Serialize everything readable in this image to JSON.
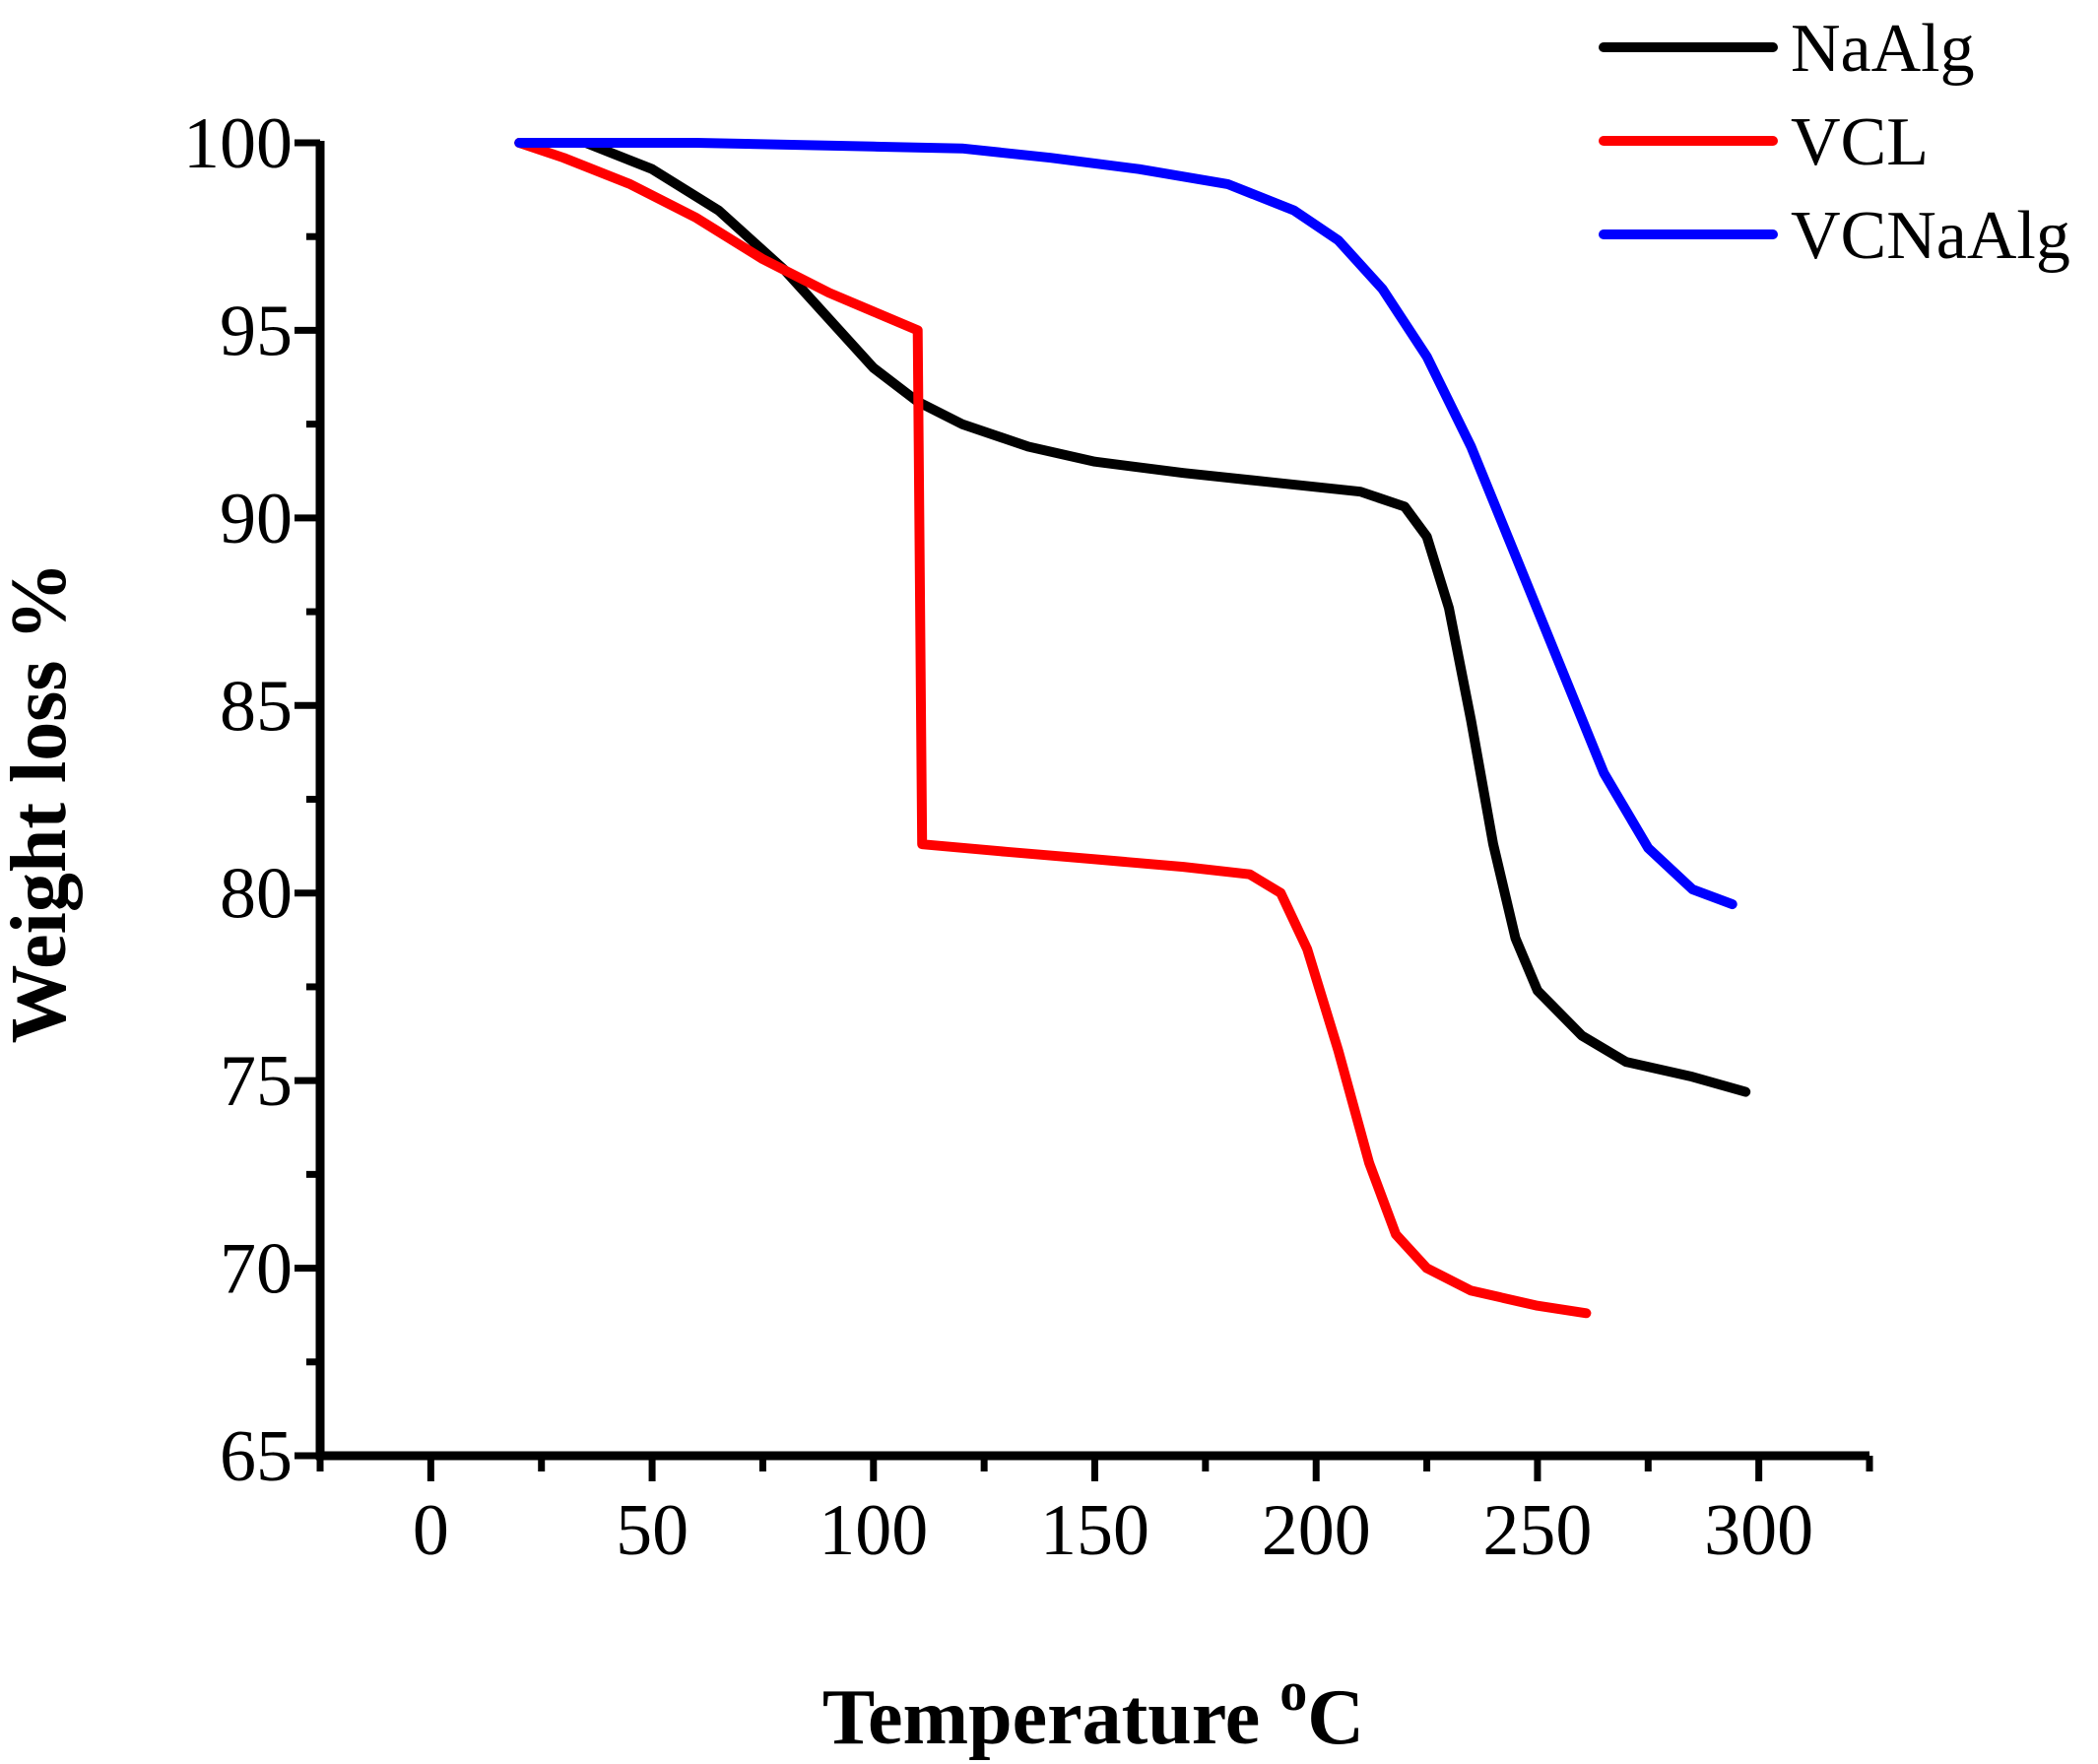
{
  "chart_data": {
    "type": "line",
    "title": "",
    "xlabel": "Temperature",
    "xlabel_unit_sup": "o",
    "xlabel_unit": "C",
    "ylabel": "Weight loss %",
    "xlim": [
      -25,
      325
    ],
    "ylim": [
      65,
      100
    ],
    "xticks": [
      0,
      50,
      100,
      150,
      200,
      250,
      300
    ],
    "yticks": [
      65,
      70,
      75,
      80,
      85,
      90,
      95,
      100
    ],
    "xtick_labels": [
      "0",
      "50",
      "100",
      "150",
      "200",
      "250",
      "300"
    ],
    "ytick_labels": [
      "65",
      "70",
      "75",
      "80",
      "85",
      "90",
      "95",
      "100"
    ],
    "grid": false,
    "legend_position": "top-right",
    "series": [
      {
        "name": "NaAlg",
        "color": "#000000",
        "points": [
          [
            20,
            100
          ],
          [
            35,
            100
          ],
          [
            50,
            99.3
          ],
          [
            65,
            98.2
          ],
          [
            80,
            96.6
          ],
          [
            90,
            95.3
          ],
          [
            100,
            94.0
          ],
          [
            110,
            93.1
          ],
          [
            120,
            92.5
          ],
          [
            135,
            91.9
          ],
          [
            150,
            91.5
          ],
          [
            170,
            91.2
          ],
          [
            190,
            90.95
          ],
          [
            210,
            90.7
          ],
          [
            220,
            90.3
          ],
          [
            225,
            89.5
          ],
          [
            230,
            87.6
          ],
          [
            235,
            84.6
          ],
          [
            240,
            81.3
          ],
          [
            245,
            78.8
          ],
          [
            250,
            77.4
          ],
          [
            260,
            76.2
          ],
          [
            270,
            75.5
          ],
          [
            285,
            75.1
          ],
          [
            297,
            74.7
          ]
        ]
      },
      {
        "name": "VCL",
        "color": "#ff0000",
        "points": [
          [
            20,
            100
          ],
          [
            30,
            99.6
          ],
          [
            45,
            98.9
          ],
          [
            60,
            98.0
          ],
          [
            75,
            96.9
          ],
          [
            90,
            96.0
          ],
          [
            100,
            95.5
          ],
          [
            110,
            95.0
          ],
          [
            111,
            81.3
          ],
          [
            130,
            81.1
          ],
          [
            150,
            80.9
          ],
          [
            170,
            80.7
          ],
          [
            185,
            80.5
          ],
          [
            192,
            80.0
          ],
          [
            198,
            78.5
          ],
          [
            205,
            75.8
          ],
          [
            212,
            72.8
          ],
          [
            218,
            70.9
          ],
          [
            225,
            70.0
          ],
          [
            235,
            69.4
          ],
          [
            250,
            69.0
          ],
          [
            261,
            68.8
          ]
        ]
      },
      {
        "name": "VCNaAlg",
        "color": "#0000ff",
        "points": [
          [
            20,
            100
          ],
          [
            60,
            100
          ],
          [
            100,
            99.9
          ],
          [
            120,
            99.85
          ],
          [
            140,
            99.6
          ],
          [
            160,
            99.3
          ],
          [
            180,
            98.9
          ],
          [
            195,
            98.2
          ],
          [
            205,
            97.4
          ],
          [
            215,
            96.1
          ],
          [
            225,
            94.3
          ],
          [
            235,
            91.9
          ],
          [
            245,
            89.0
          ],
          [
            255,
            86.1
          ],
          [
            265,
            83.2
          ],
          [
            275,
            81.2
          ],
          [
            285,
            80.1
          ],
          [
            294,
            79.7
          ]
        ]
      }
    ]
  }
}
